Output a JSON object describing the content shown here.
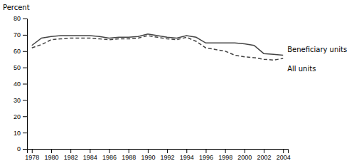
{
  "chart_data": {
    "type": "line",
    "ylabel": "Percent",
    "x": [
      1978,
      1979,
      1980,
      1981,
      1982,
      1983,
      1984,
      1985,
      1986,
      1987,
      1988,
      1989,
      1990,
      1991,
      1992,
      1993,
      1994,
      1995,
      1996,
      1997,
      1998,
      1999,
      2000,
      2001,
      2002,
      2003,
      2004
    ],
    "series": [
      {
        "name": "Beneficiary units",
        "color": "#444444",
        "line_style": "solid",
        "values": [
          63.5,
          68.0,
          69.0,
          69.5,
          69.5,
          69.5,
          69.5,
          69.0,
          68.0,
          68.5,
          68.5,
          69.0,
          70.5,
          69.5,
          68.5,
          68.0,
          69.5,
          68.5,
          65.0,
          65.0,
          65.0,
          65.0,
          64.5,
          63.5,
          58.5,
          58.0,
          57.5
        ]
      },
      {
        "name": "All units",
        "color": "#444444",
        "line_style": "dashed",
        "values": [
          62.0,
          64.0,
          67.0,
          67.5,
          68.0,
          68.0,
          68.0,
          67.5,
          67.0,
          67.5,
          67.5,
          68.0,
          69.5,
          68.5,
          67.5,
          67.0,
          68.5,
          66.0,
          62.0,
          61.0,
          60.0,
          57.5,
          56.5,
          56.0,
          55.0,
          54.5,
          55.5
        ]
      }
    ],
    "xlim": [
      1977.5,
      2004.5
    ],
    "xticks": [
      1978,
      1980,
      1982,
      1984,
      1986,
      1988,
      1990,
      1992,
      1994,
      1996,
      1998,
      2000,
      2002,
      2004
    ],
    "ylim": [
      0,
      80
    ],
    "yticks": [
      0,
      10,
      20,
      30,
      40,
      50,
      60,
      70,
      80
    ],
    "grid": false
  }
}
